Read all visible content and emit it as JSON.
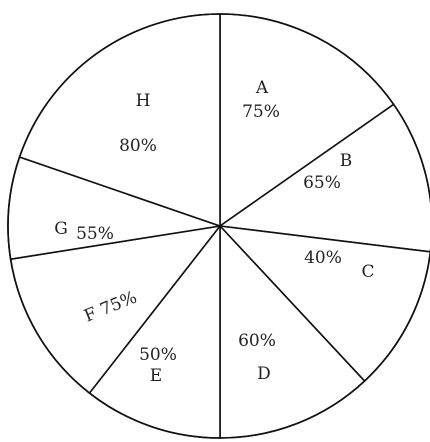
{
  "chart_data": {
    "type": "pie",
    "slices": [
      {
        "name": "A",
        "value_label": "75%"
      },
      {
        "name": "B",
        "value_label": "65%"
      },
      {
        "name": "C",
        "value_label": "40%"
      },
      {
        "name": "D",
        "value_label": "60%"
      },
      {
        "name": "E",
        "value_label": "50%"
      },
      {
        "name": "F",
        "value_label": "75%"
      },
      {
        "name": "G",
        "value_label": "55%"
      },
      {
        "name": "H",
        "value_label": "80%"
      }
    ],
    "legend": "none",
    "colors": {
      "fill": "#ffffff",
      "stroke": "#111111",
      "text": "#222222"
    }
  }
}
